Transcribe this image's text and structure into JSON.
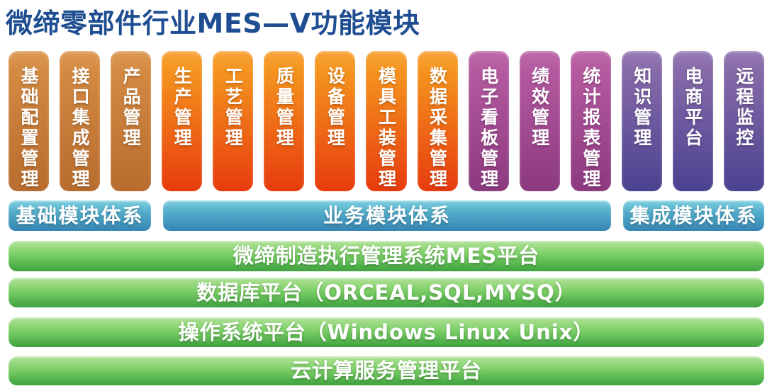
{
  "title": "微缔零部件行业MES—V功能模块",
  "palette": {
    "title_text": "#1e4e91",
    "base_group_top": "#dd9a55",
    "base_group_bottom": "#b86c2e",
    "business_group_top": "#f5941e",
    "business_group_bottom": "#e73b0e",
    "board_group_top": "#b459a0",
    "board_group_bottom": "#8c3a7f",
    "integration_group_top": "#876aa9",
    "integration_group_bottom": "#4a4290",
    "tier_bar_top": "#7ed0e0",
    "tier_bar_bottom": "#3585b3",
    "platform_bar_top": "#b2e297",
    "platform_bar_bottom": "#3ea23f",
    "label_text": "#ffffff"
  },
  "modules": [
    {
      "label": "基础配置管理",
      "group": "base"
    },
    {
      "label": "接口集成管理",
      "group": "base"
    },
    {
      "label": "产品管理",
      "group": "base"
    },
    {
      "label": "生产管理",
      "group": "business"
    },
    {
      "label": "工艺管理",
      "group": "business"
    },
    {
      "label": "质量管理",
      "group": "business"
    },
    {
      "label": "设备管理",
      "group": "business"
    },
    {
      "label": "模具工装管理",
      "group": "business"
    },
    {
      "label": "数据采集管理",
      "group": "business"
    },
    {
      "label": "电子看板管理",
      "group": "board"
    },
    {
      "label": "绩效管理",
      "group": "board"
    },
    {
      "label": "统计报表管理",
      "group": "board"
    },
    {
      "label": "知识管理",
      "group": "integration"
    },
    {
      "label": "电商平台",
      "group": "integration"
    },
    {
      "label": "远程监控",
      "group": "integration"
    }
  ],
  "tiers": [
    {
      "label": "基础模块体系"
    },
    {
      "label": "业务模块体系"
    },
    {
      "label": "集成模块体系"
    }
  ],
  "platforms": [
    {
      "label": "微缔制造执行管理系统MES平台"
    },
    {
      "label": "数据库平台（ORCEAL,SQL,MYSQ）"
    },
    {
      "label": "操作系统平台（Windows Linux Unix）"
    },
    {
      "label": "云计算服务管理平台"
    }
  ]
}
